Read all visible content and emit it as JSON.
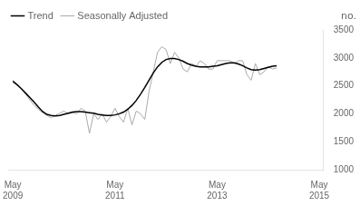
{
  "chart_data": {
    "type": "line",
    "y_label": "no.",
    "x": [
      0,
      1,
      2,
      3,
      4,
      5,
      6,
      7,
      8,
      9,
      10,
      11,
      12,
      13,
      14,
      15,
      16,
      17,
      18,
      19,
      20,
      21,
      22,
      23,
      24,
      25,
      26,
      27,
      28,
      29,
      30,
      31,
      32,
      33,
      34,
      35,
      36,
      37,
      38,
      39,
      40,
      41,
      42,
      43,
      44,
      45,
      46,
      47,
      48,
      49,
      50,
      51,
      52,
      53,
      54,
      55,
      56,
      57,
      58,
      59,
      60,
      61,
      62
    ],
    "series": [
      {
        "name": "Trend",
        "color": "#000000",
        "values": [
          2580,
          2520,
          2450,
          2370,
          2290,
          2210,
          2120,
          2040,
          1990,
          1970,
          1960,
          1970,
          1990,
          2010,
          2030,
          2040,
          2040,
          2030,
          2020,
          2010,
          1990,
          1980,
          1970,
          1970,
          1980,
          2000,
          2030,
          2080,
          2150,
          2240,
          2350,
          2470,
          2600,
          2730,
          2840,
          2920,
          2970,
          2990,
          2990,
          2970,
          2940,
          2900,
          2870,
          2850,
          2840,
          2840,
          2840,
          2850,
          2860,
          2880,
          2900,
          2910,
          2910,
          2890,
          2860,
          2820,
          2790,
          2780,
          2790,
          2810,
          2830,
          2850,
          2860
        ]
      },
      {
        "name": "Seasonally Adjusted",
        "color": "#aaaaaa",
        "values": [
          2600,
          2530,
          2450,
          2350,
          2250,
          2150,
          2080,
          2020,
          1970,
          1930,
          1970,
          2010,
          2050,
          2000,
          2020,
          2000,
          2100,
          2050,
          1650,
          2000,
          1900,
          2000,
          1850,
          1950,
          2100,
          1950,
          1850,
          2100,
          1800,
          2050,
          2000,
          1900,
          2400,
          2750,
          3100,
          3200,
          3150,
          2900,
          3100,
          3000,
          2800,
          2750,
          2900,
          2850,
          2950,
          2900,
          2800,
          2800,
          2950,
          2950,
          2950,
          2950,
          2900,
          2950,
          2950,
          2700,
          2600,
          2900,
          2700,
          2750,
          2850,
          2800,
          2820
        ]
      }
    ],
    "xlim": [
      -1,
      73
    ],
    "xticks": [
      {
        "value": 0,
        "label": "May\n2009"
      },
      {
        "value": 24,
        "label": "May\n2011"
      },
      {
        "value": 48,
        "label": "May\n2013"
      },
      {
        "value": 72,
        "label": "May\n2015"
      }
    ],
    "ylim": [
      1000,
      3500
    ],
    "yticks": [
      1000,
      1500,
      2000,
      2500,
      3000,
      3500
    ],
    "grid": false,
    "legend": "upper left"
  }
}
